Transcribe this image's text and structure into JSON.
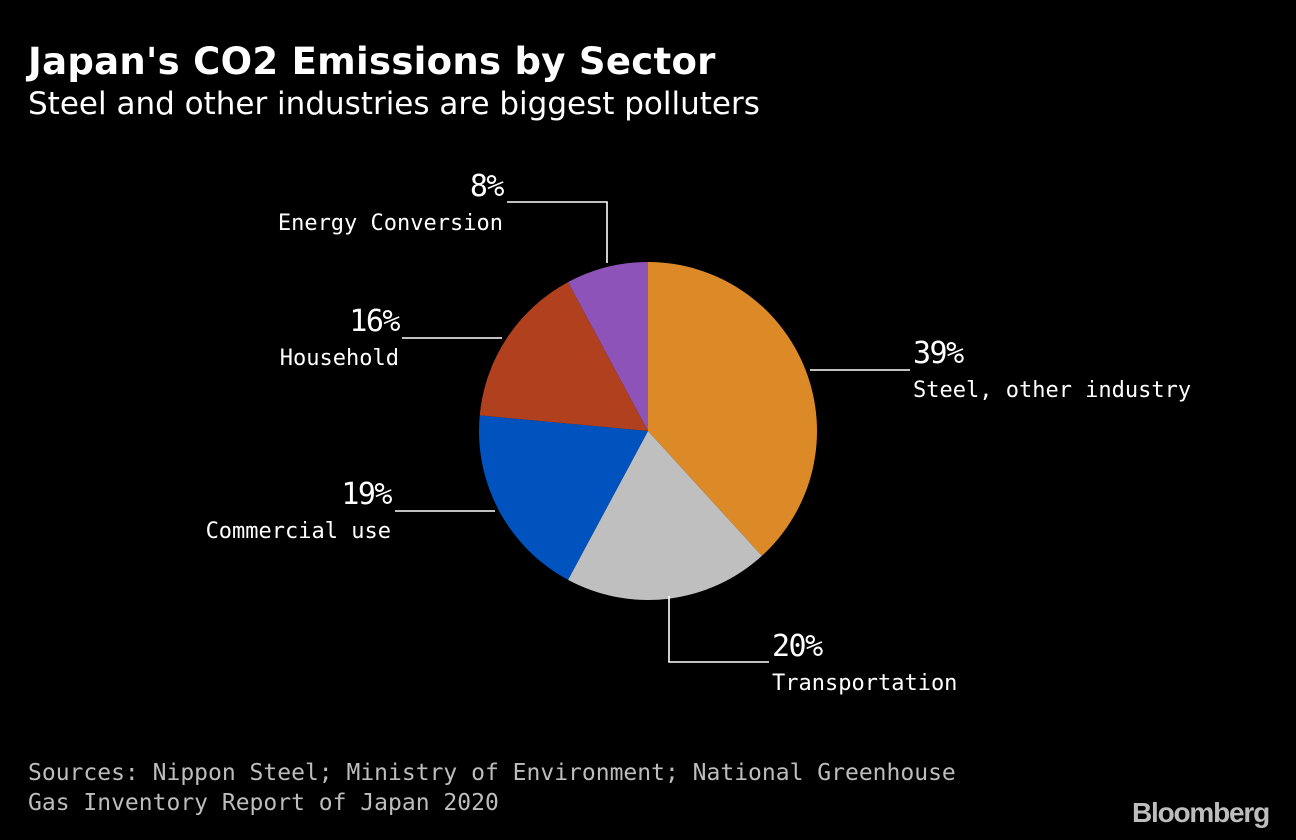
{
  "header": {
    "title": "Japan's CO2 Emissions by Sector",
    "subtitle": "Steel and other industries are biggest polluters"
  },
  "chart_data": {
    "type": "pie",
    "title": "Japan's CO2 Emissions by Sector",
    "subtitle": "Steel and other industries are biggest polluters",
    "slices": [
      {
        "label": "Steel, other industry",
        "value": 39,
        "display": "39%",
        "color": "#dc8a27"
      },
      {
        "label": "Transportation",
        "value": 20,
        "display": "20%",
        "color": "#bfbfbf"
      },
      {
        "label": "Commercial use",
        "value": 19,
        "display": "19%",
        "color": "#0052bf"
      },
      {
        "label": "Household",
        "value": 16,
        "display": "16%",
        "color": "#b0401e"
      },
      {
        "label": "Energy Conversion",
        "value": 8,
        "display": "8%",
        "color": "#8d53b8"
      }
    ]
  },
  "footer": {
    "source": "Sources: Nippon Steel; Ministry of Environment; National Greenhouse Gas Inventory Report of Japan 2020",
    "logo": "Bloomberg"
  },
  "colors": {
    "background": "#000000",
    "text": "#ffffff",
    "muted_text": "#bdbdbd"
  }
}
